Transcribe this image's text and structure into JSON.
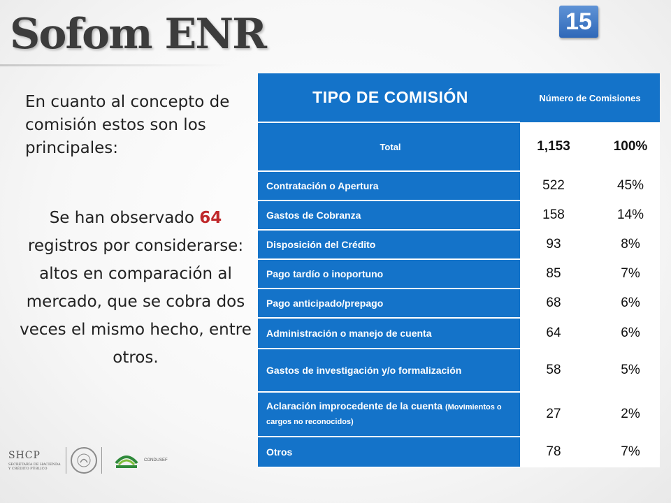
{
  "title": "Sofom ENR",
  "slide_number": "15",
  "intro_text": "En cuanto al concepto de comisión estos son los principales:",
  "observation": {
    "prefix": "Se han observado ",
    "highlight": "64",
    "suffix": " registros por considerarse: altos en comparación al mercado, que se cobra dos veces el mismo hecho, entre otros."
  },
  "table": {
    "header_type": "TIPO DE COMISIÓN",
    "header_count": "Número de Comisiones",
    "total": {
      "label": "Total",
      "value": "1,153",
      "pct": "100%"
    },
    "rows": [
      {
        "label": "Contratación o Apertura",
        "value": "522",
        "pct": "45%"
      },
      {
        "label": "Gastos de Cobranza",
        "value": "158",
        "pct": "14%"
      },
      {
        "label": "Disposición del Crédito",
        "value": "93",
        "pct": "8%"
      },
      {
        "label": "Pago tardío o inoportuno",
        "value": "85",
        "pct": "7%"
      },
      {
        "label": "Pago anticipado/prepago",
        "value": "68",
        "pct": "6%"
      },
      {
        "label": "Administración o manejo de cuenta",
        "value": "64",
        "pct": "6%"
      },
      {
        "label": "Gastos de investigación y/o formalización",
        "value": "58",
        "pct": "5%"
      },
      {
        "label": "Aclaración improcedente de la cuenta",
        "note": "(Movimientos o cargos no reconocidos)",
        "value": "27",
        "pct": "2%"
      },
      {
        "label": "Otros",
        "value": "78",
        "pct": "7%"
      }
    ]
  },
  "logos": {
    "shcp": "SHCP",
    "shcp_sub": "SECRETARÍA DE HACIENDA Y CRÉDITO PÚBLICO",
    "condusef": "CONDUSEF"
  },
  "colors": {
    "table_blue": "#1473c9",
    "badge_blue": "#2f68b8",
    "highlight_red": "#c0282b"
  }
}
